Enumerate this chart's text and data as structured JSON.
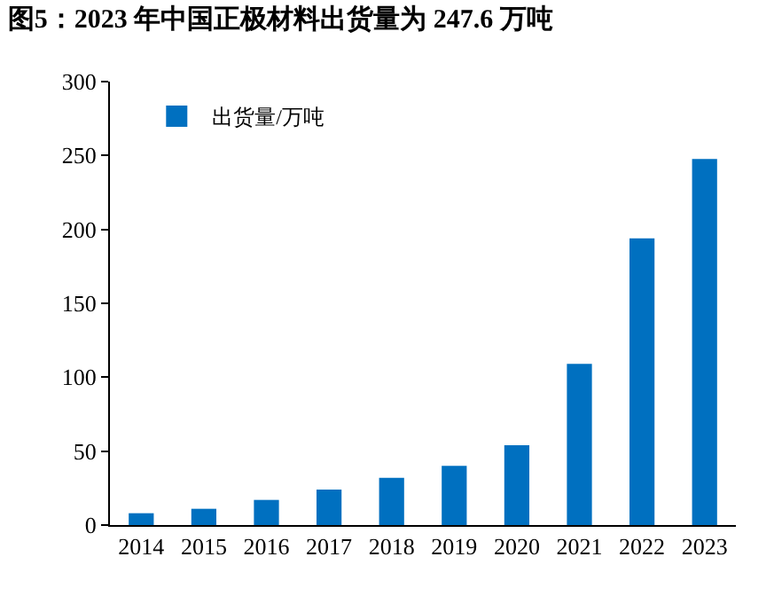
{
  "chart_data": {
    "type": "bar",
    "title": "图5：2023 年中国正极材料出货量为 247.6 万吨",
    "categories": [
      "2014",
      "2015",
      "2016",
      "2017",
      "2018",
      "2019",
      "2020",
      "2021",
      "2022",
      "2023"
    ],
    "series": [
      {
        "name": "出货量/万吨",
        "color": "#0070c0",
        "values": [
          8,
          11,
          17,
          24,
          32,
          40,
          54,
          109,
          194,
          247.6
        ]
      }
    ],
    "ylim": [
      0,
      300
    ],
    "yticks": [
      0,
      50,
      100,
      150,
      200,
      250,
      300
    ],
    "grid": false,
    "legend": "top left"
  }
}
